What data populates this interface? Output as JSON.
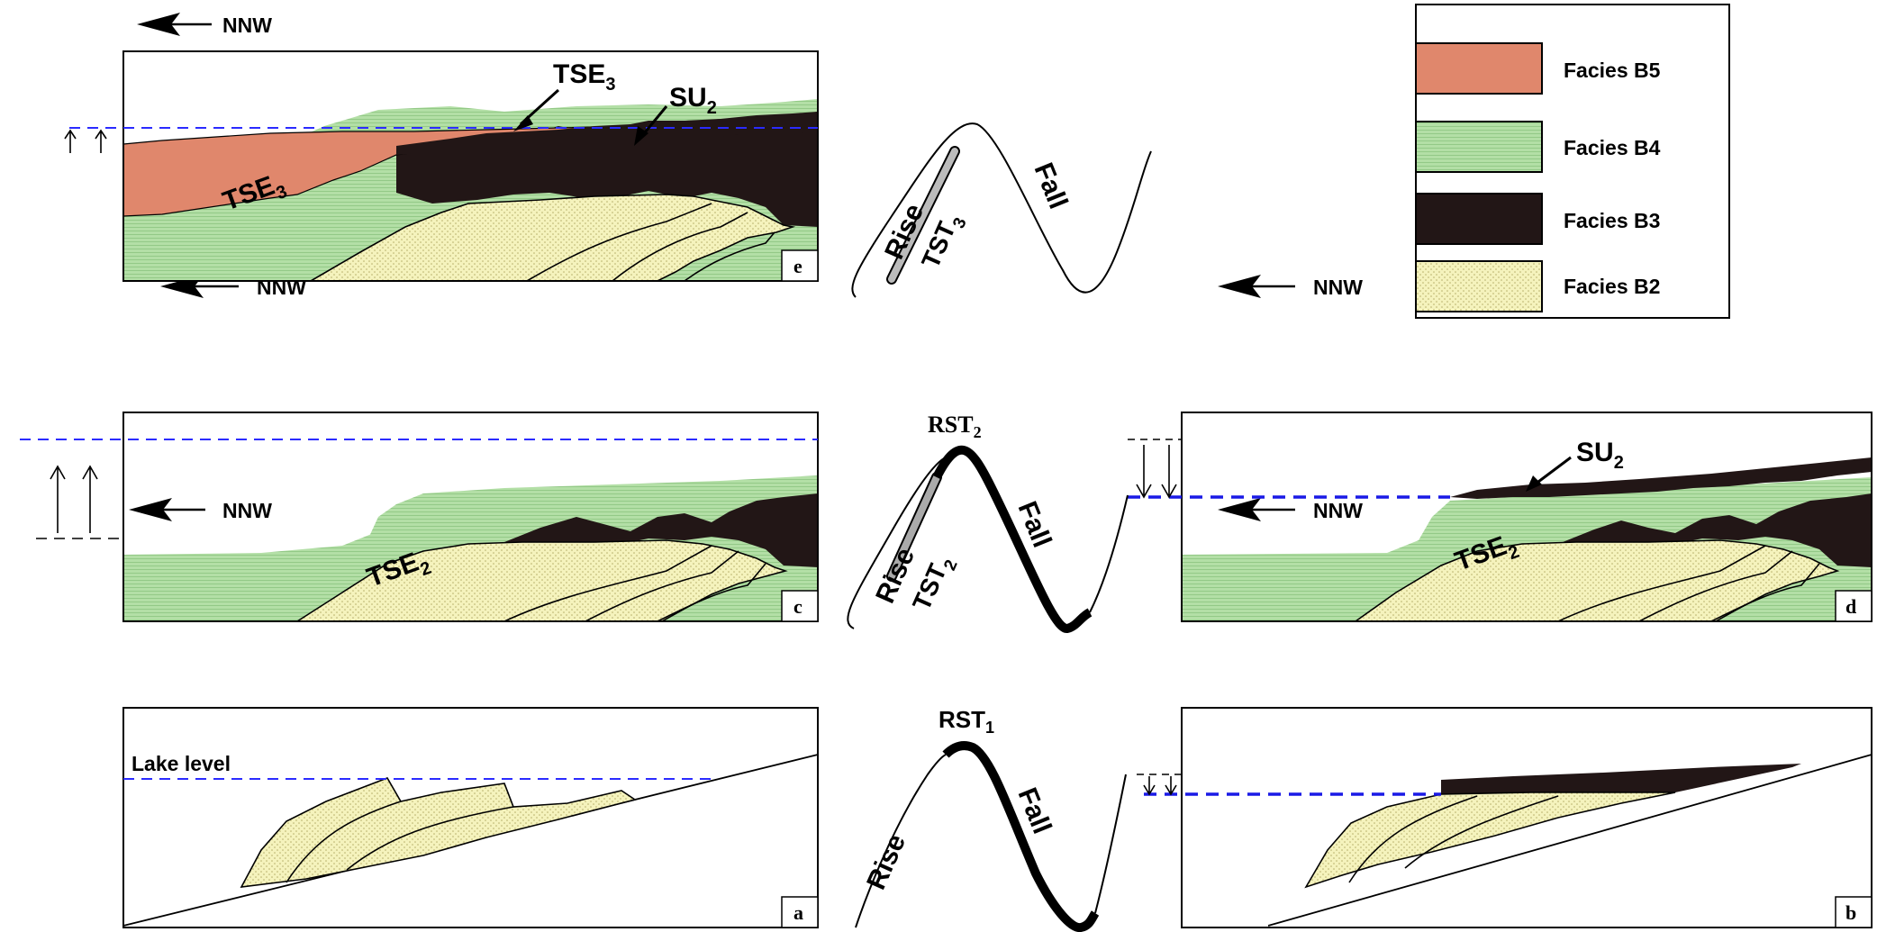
{
  "direction_label": "NNW",
  "legend": {
    "items": [
      {
        "label": "Facies B5",
        "color": "#e0876c"
      },
      {
        "label": "Facies B4",
        "color": "#b3dfa6"
      },
      {
        "label": "Facies B3",
        "color": "#221616"
      },
      {
        "label": "Facies B2",
        "color": "#f5f3bd"
      }
    ]
  },
  "panels": {
    "a": {
      "letter": "a",
      "lake_label": "Lake level"
    },
    "b": {
      "letter": "b"
    },
    "c": {
      "letter": "c",
      "surface_label": "TSE",
      "surface_sub": "2"
    },
    "d": {
      "letter": "d",
      "surface_label": "TSE",
      "surface_sub": "2",
      "unconformity_label": "SU",
      "unconformity_sub": "2"
    },
    "e": {
      "letter": "e",
      "surface_label": "TSE",
      "surface_sub": "3",
      "callout1_label": "TSE",
      "callout1_sub": "3",
      "callout2_label": "SU",
      "callout2_sub": "2"
    }
  },
  "curves": {
    "top": {
      "rise": "Rise",
      "fall": "Fall",
      "tract": "TST",
      "tract_sub": "3"
    },
    "middle": {
      "rise": "Rise",
      "fall": "Fall",
      "tract": "TST",
      "tract_sub": "2",
      "peak": "RST",
      "peak_sub": "2"
    },
    "bottom": {
      "rise": "Rise",
      "fall": "Fall",
      "peak": "RST",
      "peak_sub": "1"
    }
  },
  "colors": {
    "facies_b5": "#e0876c",
    "facies_b4": "#b3dfa6",
    "facies_b3": "#221616",
    "facies_b2": "#f5f3bd",
    "lake_level": "#2b2bff"
  }
}
